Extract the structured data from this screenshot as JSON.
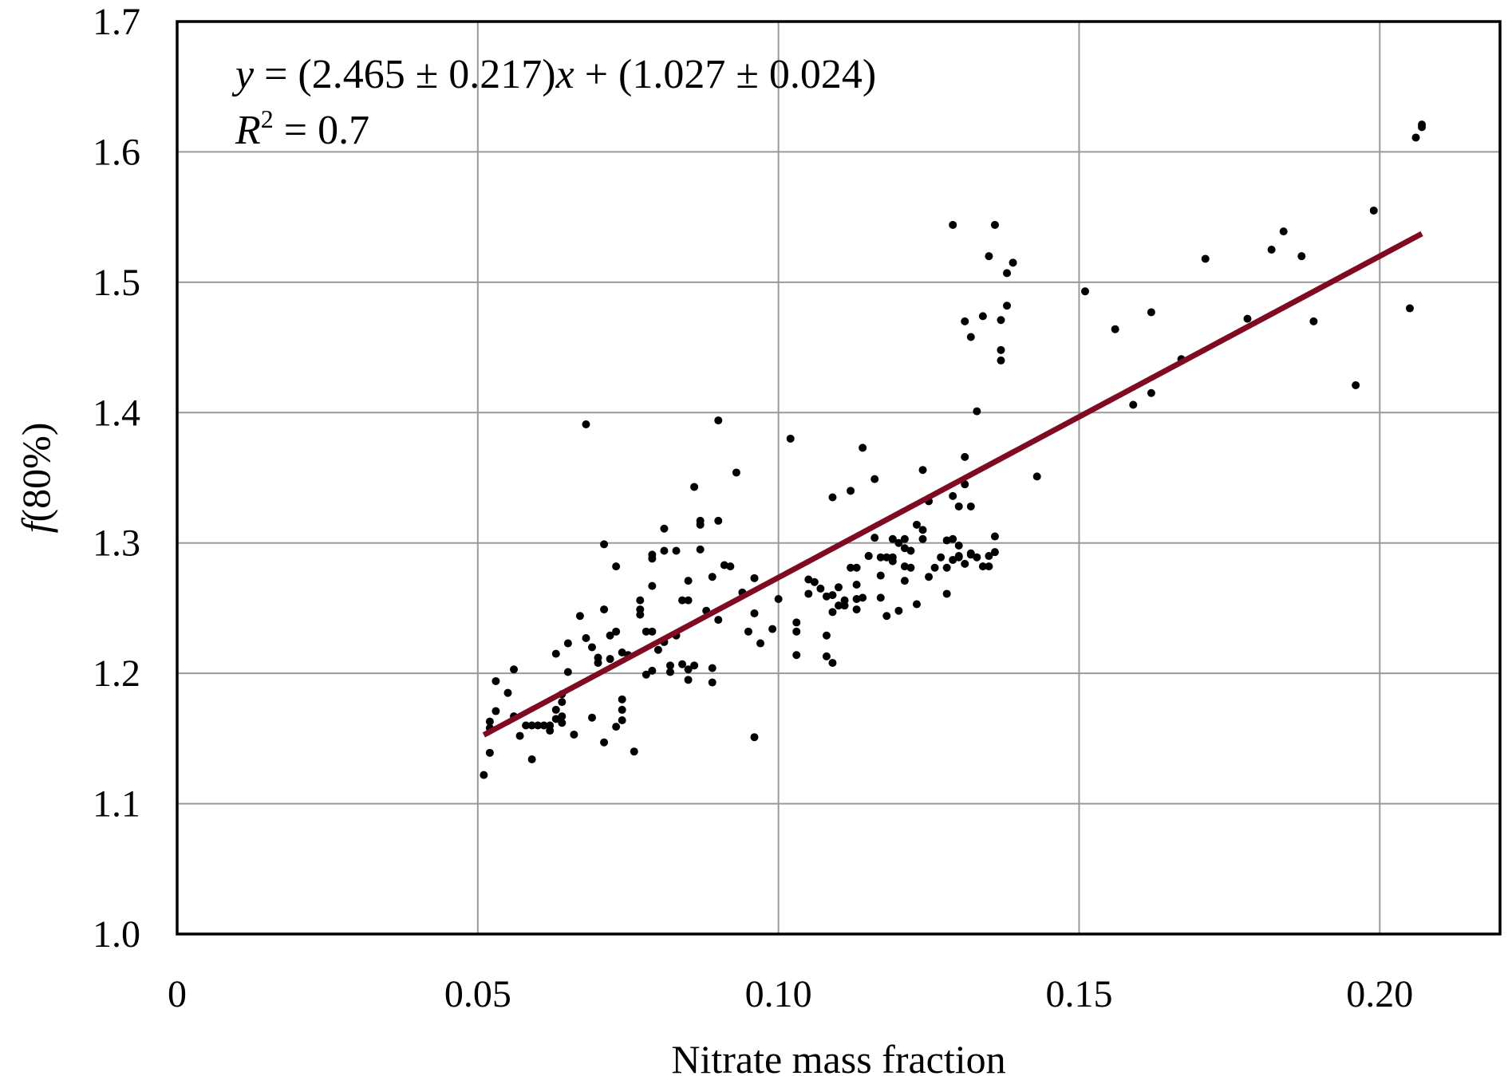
{
  "chart_data": {
    "type": "scatter",
    "title": "",
    "xlabel": "Nitrate mass fraction",
    "ylabel_italic": "f",
    "ylabel_rest": "(80%)",
    "xlim": [
      0,
      0.22
    ],
    "ylim": [
      1.0,
      1.7
    ],
    "x_ticks": [
      0,
      0.05,
      0.1,
      0.15,
      0.2
    ],
    "x_tick_labels": [
      "0",
      "0.05",
      "0.10",
      "0.15",
      "0.20"
    ],
    "y_ticks": [
      1.0,
      1.1,
      1.2,
      1.3,
      1.4,
      1.5,
      1.6,
      1.7
    ],
    "y_tick_labels": [
      "1.0",
      "1.1",
      "1.2",
      "1.3",
      "1.4",
      "1.5",
      "1.6",
      "1.7"
    ],
    "grid": true,
    "colors": {
      "points": "#000000",
      "fit_line": "#7e0b22",
      "grid": "#9a9a9a"
    },
    "annotation": {
      "eq_y": "y",
      "eq_mid": " = (2.465 ± 0.217)",
      "eq_x": "x",
      "eq_end": " + (1.027 ± 0.024)",
      "r2_R": "R",
      "r2_sup": "2",
      "r2_rest": " = 0.7"
    },
    "fit": {
      "slope": 2.465,
      "intercept": 1.027,
      "x_range": [
        0.051,
        0.207
      ]
    },
    "points": [
      [
        0.051,
        1.122
      ],
      [
        0.052,
        1.139
      ],
      [
        0.052,
        1.158
      ],
      [
        0.052,
        1.163
      ],
      [
        0.053,
        1.171
      ],
      [
        0.053,
        1.194
      ],
      [
        0.055,
        1.185
      ],
      [
        0.056,
        1.167
      ],
      [
        0.056,
        1.203
      ],
      [
        0.057,
        1.152
      ],
      [
        0.058,
        1.16
      ],
      [
        0.059,
        1.16
      ],
      [
        0.059,
        1.134
      ],
      [
        0.06,
        1.16
      ],
      [
        0.061,
        1.16
      ],
      [
        0.062,
        1.16
      ],
      [
        0.062,
        1.156
      ],
      [
        0.063,
        1.165
      ],
      [
        0.063,
        1.172
      ],
      [
        0.063,
        1.215
      ],
      [
        0.064,
        1.162
      ],
      [
        0.064,
        1.167
      ],
      [
        0.064,
        1.178
      ],
      [
        0.064,
        1.184
      ],
      [
        0.065,
        1.201
      ],
      [
        0.065,
        1.223
      ],
      [
        0.066,
        1.153
      ],
      [
        0.067,
        1.244
      ],
      [
        0.068,
        1.391
      ],
      [
        0.068,
        1.227
      ],
      [
        0.069,
        1.166
      ],
      [
        0.069,
        1.22
      ],
      [
        0.07,
        1.208
      ],
      [
        0.07,
        1.212
      ],
      [
        0.071,
        1.299
      ],
      [
        0.071,
        1.147
      ],
      [
        0.071,
        1.249
      ],
      [
        0.072,
        1.211
      ],
      [
        0.072,
        1.229
      ],
      [
        0.073,
        1.159
      ],
      [
        0.073,
        1.282
      ],
      [
        0.073,
        1.232
      ],
      [
        0.074,
        1.164
      ],
      [
        0.074,
        1.172
      ],
      [
        0.074,
        1.18
      ],
      [
        0.074,
        1.216
      ],
      [
        0.075,
        1.214
      ],
      [
        0.076,
        1.14
      ],
      [
        0.077,
        1.245
      ],
      [
        0.077,
        1.249
      ],
      [
        0.077,
        1.256
      ],
      [
        0.078,
        1.232
      ],
      [
        0.078,
        1.199
      ],
      [
        0.079,
        1.202
      ],
      [
        0.079,
        1.267
      ],
      [
        0.079,
        1.288
      ],
      [
        0.079,
        1.291
      ],
      [
        0.079,
        1.232
      ],
      [
        0.08,
        1.218
      ],
      [
        0.081,
        1.311
      ],
      [
        0.081,
        1.224
      ],
      [
        0.081,
        1.294
      ],
      [
        0.082,
        1.201
      ],
      [
        0.082,
        1.206
      ],
      [
        0.083,
        1.229
      ],
      [
        0.083,
        1.294
      ],
      [
        0.084,
        1.256
      ],
      [
        0.084,
        1.207
      ],
      [
        0.085,
        1.203
      ],
      [
        0.085,
        1.195
      ],
      [
        0.085,
        1.271
      ],
      [
        0.085,
        1.256
      ],
      [
        0.086,
        1.343
      ],
      [
        0.086,
        1.206
      ],
      [
        0.087,
        1.295
      ],
      [
        0.087,
        1.314
      ],
      [
        0.087,
        1.317
      ],
      [
        0.088,
        1.248
      ],
      [
        0.089,
        1.193
      ],
      [
        0.089,
        1.204
      ],
      [
        0.089,
        1.274
      ],
      [
        0.09,
        1.241
      ],
      [
        0.09,
        1.317
      ],
      [
        0.09,
        1.394
      ],
      [
        0.091,
        1.283
      ],
      [
        0.092,
        1.282
      ],
      [
        0.093,
        1.354
      ],
      [
        0.094,
        1.262
      ],
      [
        0.095,
        1.232
      ],
      [
        0.096,
        1.273
      ],
      [
        0.096,
        1.246
      ],
      [
        0.096,
        1.151
      ],
      [
        0.097,
        1.223
      ],
      [
        0.099,
        1.234
      ],
      [
        0.1,
        1.257
      ],
      [
        0.102,
        1.38
      ],
      [
        0.103,
        1.214
      ],
      [
        0.103,
        1.232
      ],
      [
        0.103,
        1.239
      ],
      [
        0.105,
        1.261
      ],
      [
        0.105,
        1.272
      ],
      [
        0.106,
        1.27
      ],
      [
        0.107,
        1.265
      ],
      [
        0.108,
        1.213
      ],
      [
        0.108,
        1.229
      ],
      [
        0.108,
        1.259
      ],
      [
        0.109,
        1.208
      ],
      [
        0.109,
        1.335
      ],
      [
        0.109,
        1.247
      ],
      [
        0.109,
        1.26
      ],
      [
        0.11,
        1.252
      ],
      [
        0.11,
        1.266
      ],
      [
        0.111,
        1.256
      ],
      [
        0.111,
        1.252
      ],
      [
        0.112,
        1.34
      ],
      [
        0.112,
        1.281
      ],
      [
        0.113,
        1.281
      ],
      [
        0.113,
        1.268
      ],
      [
        0.113,
        1.257
      ],
      [
        0.113,
        1.249
      ],
      [
        0.114,
        1.373
      ],
      [
        0.114,
        1.258
      ],
      [
        0.115,
        1.29
      ],
      [
        0.115,
        1.29
      ],
      [
        0.116,
        1.349
      ],
      [
        0.116,
        1.304
      ],
      [
        0.117,
        1.275
      ],
      [
        0.117,
        1.289
      ],
      [
        0.117,
        1.258
      ],
      [
        0.118,
        1.244
      ],
      [
        0.118,
        1.289
      ],
      [
        0.119,
        1.286
      ],
      [
        0.119,
        1.303
      ],
      [
        0.119,
        1.289
      ],
      [
        0.12,
        1.248
      ],
      [
        0.12,
        1.3
      ],
      [
        0.121,
        1.271
      ],
      [
        0.121,
        1.282
      ],
      [
        0.121,
        1.303
      ],
      [
        0.121,
        1.296
      ],
      [
        0.122,
        1.294
      ],
      [
        0.122,
        1.281
      ],
      [
        0.123,
        1.253
      ],
      [
        0.123,
        1.314
      ],
      [
        0.124,
        1.356
      ],
      [
        0.124,
        1.31
      ],
      [
        0.124,
        1.303
      ],
      [
        0.125,
        1.332
      ],
      [
        0.125,
        1.274
      ],
      [
        0.126,
        1.281
      ],
      [
        0.127,
        1.289
      ],
      [
        0.128,
        1.261
      ],
      [
        0.128,
        1.281
      ],
      [
        0.128,
        1.302
      ],
      [
        0.129,
        1.544
      ],
      [
        0.129,
        1.287
      ],
      [
        0.129,
        1.303
      ],
      [
        0.129,
        1.336
      ],
      [
        0.13,
        1.298
      ],
      [
        0.13,
        1.29
      ],
      [
        0.13,
        1.289
      ],
      [
        0.13,
        1.328
      ],
      [
        0.131,
        1.366
      ],
      [
        0.131,
        1.345
      ],
      [
        0.131,
        1.284
      ],
      [
        0.131,
        1.47
      ],
      [
        0.132,
        1.328
      ],
      [
        0.132,
        1.292
      ],
      [
        0.132,
        1.291
      ],
      [
        0.132,
        1.458
      ],
      [
        0.133,
        1.289
      ],
      [
        0.133,
        1.401
      ],
      [
        0.134,
        1.282
      ],
      [
        0.134,
        1.474
      ],
      [
        0.135,
        1.282
      ],
      [
        0.135,
        1.29
      ],
      [
        0.135,
        1.52
      ],
      [
        0.136,
        1.305
      ],
      [
        0.136,
        1.293
      ],
      [
        0.136,
        1.544
      ],
      [
        0.137,
        1.44
      ],
      [
        0.137,
        1.448
      ],
      [
        0.137,
        1.471
      ],
      [
        0.138,
        1.482
      ],
      [
        0.138,
        1.507
      ],
      [
        0.139,
        1.515
      ],
      [
        0.143,
        1.351
      ],
      [
        0.151,
        1.493
      ],
      [
        0.156,
        1.464
      ],
      [
        0.159,
        1.406
      ],
      [
        0.162,
        1.477
      ],
      [
        0.162,
        1.415
      ],
      [
        0.167,
        1.441
      ],
      [
        0.171,
        1.518
      ],
      [
        0.178,
        1.472
      ],
      [
        0.182,
        1.525
      ],
      [
        0.184,
        1.539
      ],
      [
        0.187,
        1.52
      ],
      [
        0.189,
        1.47
      ],
      [
        0.196,
        1.421
      ],
      [
        0.199,
        1.555
      ],
      [
        0.205,
        1.48
      ],
      [
        0.206,
        1.611
      ],
      [
        0.207,
        1.619
      ],
      [
        0.207,
        1.621
      ]
    ]
  }
}
